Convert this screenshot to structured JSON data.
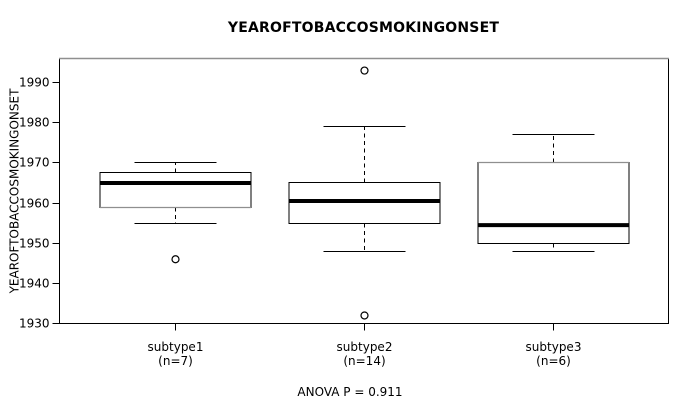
{
  "chart_data": {
    "type": "boxplot",
    "title": "YEAROFTOBACCOSMOKINGONSET",
    "ylabel": "YEAROFTOBACCOSMOKINGONSET",
    "xlabel": "",
    "sub": "ANOVA P = 0.911",
    "ylim": [
      1930,
      1996
    ],
    "y_ticks": [
      1930,
      1940,
      1950,
      1960,
      1970,
      1980,
      1990
    ],
    "grid": false,
    "legend": "none",
    "groups": [
      {
        "label": "subtype1",
        "count_label": "(n=7)",
        "n": 7,
        "whisker_low": 1955,
        "q1": 1959,
        "median": 1965,
        "q3": 1967.5,
        "whisker_high": 1970,
        "outliers": [
          1946
        ]
      },
      {
        "label": "subtype2",
        "count_label": "(n=14)",
        "n": 14,
        "whisker_low": 1948,
        "q1": 1955,
        "median": 1960.5,
        "q3": 1965,
        "whisker_high": 1979,
        "outliers": [
          1993,
          1932
        ]
      },
      {
        "label": "subtype3",
        "count_label": "(n=6)",
        "n": 6,
        "whisker_low": 1948,
        "q1": 1950,
        "median": 1954.5,
        "q3": 1970,
        "whisker_high": 1977,
        "outliers": []
      }
    ],
    "colors": {
      "line": "#000000",
      "box_fill": "#ffffff",
      "muted_edge": "#8f8f8f",
      "background": "#ffffff"
    }
  }
}
